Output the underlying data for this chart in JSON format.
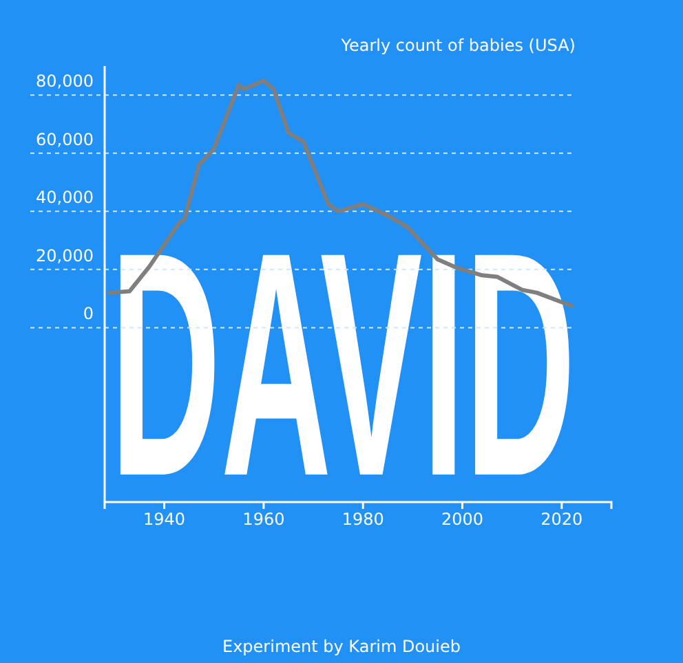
{
  "chart_data": {
    "type": "line",
    "title": "Yearly count of babies (USA)",
    "x": [
      1929,
      1933,
      1937,
      1943,
      1944,
      1947,
      1950,
      1955,
      1956,
      1960,
      1962,
      1965,
      1968,
      1973,
      1975,
      1980,
      1985,
      1989,
      1995,
      1999,
      2004,
      2007,
      2012,
      2015,
      2022
    ],
    "series": [
      {
        "color": "#7f7f7f",
        "values": [
          12000,
          12500,
          21000,
          36000,
          37000,
          56000,
          61500,
          83500,
          82000,
          85000,
          82000,
          67000,
          64000,
          42500,
          40000,
          42500,
          38500,
          34500,
          23500,
          20500,
          18000,
          17500,
          13000,
          12000,
          7500
        ]
      }
    ],
    "xlim": [
      1928,
      2030
    ],
    "xticks": [
      1940,
      1960,
      1980,
      2000,
      2020
    ],
    "ylim": [
      -60000,
      90000
    ],
    "yticks": [
      {
        "value": 0,
        "label": "0"
      },
      {
        "value": 20000,
        "label": "20,000"
      },
      {
        "value": 40000,
        "label": "40,000"
      },
      {
        "value": 60000,
        "label": "60,000"
      },
      {
        "value": 80000,
        "label": "80,000"
      }
    ],
    "grid": "y",
    "annotations": [
      "DAVID",
      "Experiment by Karim Douieb"
    ]
  }
}
